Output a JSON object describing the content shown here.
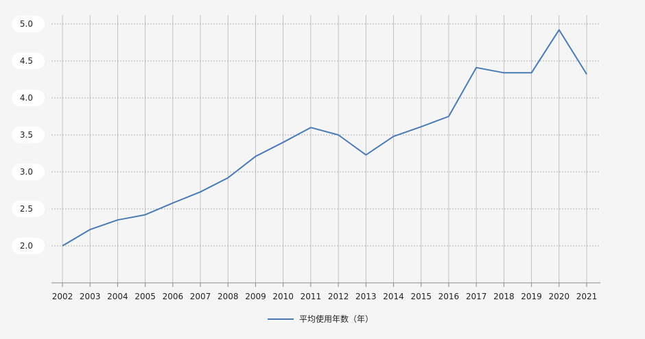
{
  "chart_data": {
    "type": "line",
    "title": "",
    "xlabel": "",
    "ylabel": "",
    "categories": [
      "2002",
      "2003",
      "2004",
      "2005",
      "2006",
      "2007",
      "2008",
      "2009",
      "2010",
      "2011",
      "2012",
      "2013",
      "2014",
      "2015",
      "2016",
      "2017",
      "2018",
      "2019",
      "2020",
      "2021"
    ],
    "y_ticks": [
      "2.0",
      "2.5",
      "3.0",
      "3.5",
      "4.0",
      "4.5",
      "5.0"
    ],
    "ylim": [
      1.5,
      5.1
    ],
    "grid": true,
    "legend_position": "bottom-center",
    "series": [
      {
        "name": "平均使用年数（年）",
        "color": "#4a7ab5",
        "values": [
          2.0,
          2.22,
          2.35,
          2.42,
          2.58,
          2.73,
          2.92,
          3.21,
          3.4,
          3.6,
          3.5,
          3.23,
          3.48,
          3.61,
          3.75,
          4.41,
          4.34,
          4.34,
          4.92,
          4.32
        ]
      }
    ]
  }
}
